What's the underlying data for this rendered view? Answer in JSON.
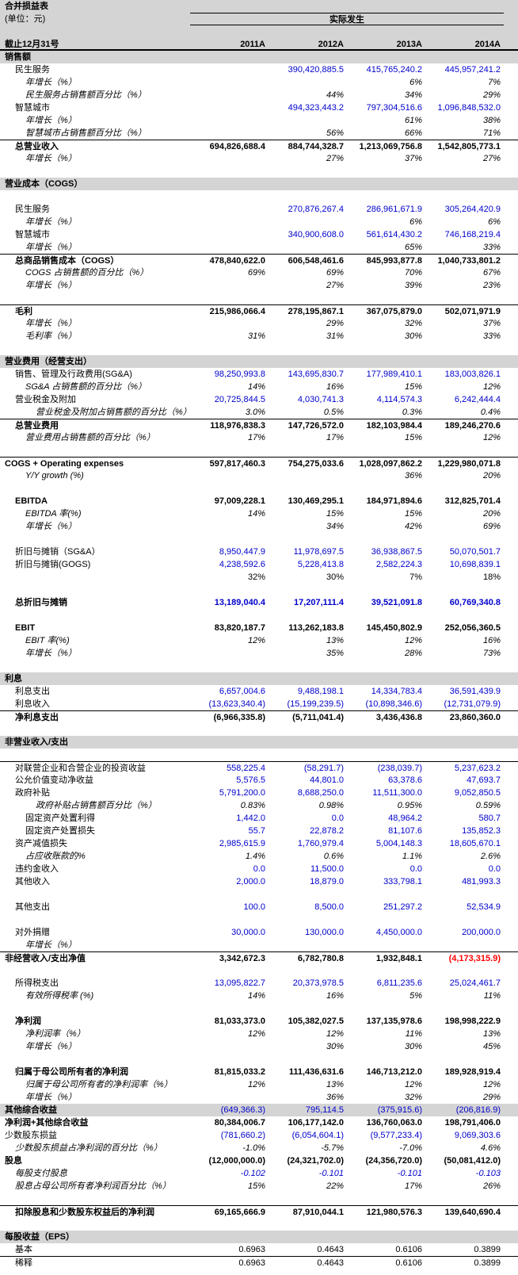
{
  "header": {
    "title": "合并损益表",
    "unit": "(单位：元)",
    "group_label": "实际发生",
    "date_label": "截止12月31号",
    "columns": [
      "2011A",
      "2012A",
      "2013A",
      "2014A"
    ]
  },
  "colors": {
    "input_value_blue": "#0000cc",
    "negative_red": "#ff0000",
    "header_gray": "#d4d4d4"
  },
  "rows": [
    {
      "label": "销售额",
      "indent": 0,
      "ls": "b",
      "bg": true,
      "values": [
        "",
        "",
        "",
        ""
      ]
    },
    {
      "label": "民生服务",
      "indent": 1,
      "vs": "blue",
      "values": [
        "",
        "390,420,885.5",
        "415,765,240.2",
        "445,957,241.2"
      ]
    },
    {
      "label": "年增长（%）",
      "indent": 2,
      "ls": "i",
      "vs": "it",
      "values": [
        "",
        "",
        "6%",
        "7%"
      ]
    },
    {
      "label": "民生服务占销售额百分比（%）",
      "indent": 2,
      "ls": "i",
      "vs": "it",
      "values": [
        "",
        "44%",
        "34%",
        "29%"
      ]
    },
    {
      "label": "智慧城市",
      "indent": 1,
      "vs": "blue",
      "values": [
        "",
        "494,323,443.2",
        "797,304,516.6",
        "1,096,848,532.0"
      ]
    },
    {
      "label": "年增长（%）",
      "indent": 2,
      "ls": "i",
      "vs": "it",
      "values": [
        "",
        "",
        "61%",
        "38%"
      ]
    },
    {
      "label": "智慧城市占销售额百分比（%）",
      "indent": 2,
      "ls": "i",
      "vs": "it",
      "values": [
        "",
        "56%",
        "66%",
        "71%"
      ]
    },
    {
      "label": "总营业收入",
      "indent": 1,
      "ls": "b",
      "vs": "bb",
      "bt": true,
      "values": [
        "694,826,688.4",
        "884,744,328.7",
        "1,213,069,756.8",
        "1,542,805,773.1"
      ]
    },
    {
      "label": "年增长（%）",
      "indent": 2,
      "ls": "i",
      "vs": "it",
      "values": [
        "",
        "27%",
        "37%",
        "27%"
      ]
    },
    {
      "label": "",
      "values": [
        "",
        "",
        "",
        ""
      ]
    },
    {
      "label": "营业成本（COGS）",
      "indent": 0,
      "ls": "b",
      "bg": true,
      "values": [
        "",
        "",
        "",
        ""
      ]
    },
    {
      "label": "",
      "values": [
        "",
        "",
        "",
        ""
      ]
    },
    {
      "label": "民生服务",
      "indent": 1,
      "vs": "blue",
      "values": [
        "",
        "270,876,267.4",
        "286,961,671.9",
        "305,264,420.9"
      ]
    },
    {
      "label": "年增长（%）",
      "indent": 2,
      "ls": "i",
      "vs": "it",
      "values": [
        "",
        "",
        "6%",
        "6%"
      ]
    },
    {
      "label": "智慧城市",
      "indent": 1,
      "vs": "blue",
      "values": [
        "",
        "340,900,608.0",
        "561,614,430.2",
        "746,168,219.4"
      ]
    },
    {
      "label": "年增长（%）",
      "indent": 2,
      "ls": "i",
      "vs": "it",
      "values": [
        "",
        "",
        "65%",
        "33%"
      ]
    },
    {
      "label": "总商品销售成本（COGS）",
      "indent": 1,
      "ls": "b",
      "vs": "bb",
      "bt": true,
      "values": [
        "478,840,622.0",
        "606,548,461.6",
        "845,993,877.8",
        "1,040,733,801.2"
      ]
    },
    {
      "label": "COGS 占销售额的百分比（%）",
      "indent": 2,
      "ls": "i",
      "vs": "it",
      "values": [
        "69%",
        "69%",
        "70%",
        "67%"
      ]
    },
    {
      "label": "年增长（%）",
      "indent": 2,
      "ls": "i",
      "vs": "it",
      "values": [
        "",
        "27%",
        "39%",
        "23%"
      ]
    },
    {
      "label": "",
      "values": [
        "",
        "",
        "",
        ""
      ]
    },
    {
      "label": "毛利",
      "indent": 1,
      "ls": "b",
      "vs": "bb",
      "bt": true,
      "values": [
        "215,986,066.4",
        "278,195,867.1",
        "367,075,879.0",
        "502,071,971.9"
      ]
    },
    {
      "label": "年增长（%）",
      "indent": 2,
      "ls": "i",
      "vs": "it",
      "values": [
        "",
        "29%",
        "32%",
        "37%"
      ]
    },
    {
      "label": "毛利率（%）",
      "indent": 2,
      "ls": "i",
      "vs": "it",
      "values": [
        "31%",
        "31%",
        "30%",
        "33%"
      ]
    },
    {
      "label": "",
      "values": [
        "",
        "",
        "",
        ""
      ]
    },
    {
      "label": "营业费用（经营支出）",
      "indent": 0,
      "ls": "b",
      "bg": true,
      "values": [
        "",
        "",
        "",
        ""
      ]
    },
    {
      "label": "销售、管理及行政费用(SG&A)",
      "indent": 1,
      "vs": "blue",
      "values": [
        "98,250,993.8",
        "143,695,830.7",
        "177,989,410.1",
        "183,003,826.1"
      ]
    },
    {
      "label": "SG&A 占销售额的百分比（%）",
      "indent": 2,
      "ls": "i",
      "vs": "it",
      "values": [
        "14%",
        "16%",
        "15%",
        "12%"
      ]
    },
    {
      "label": "营业税金及附加",
      "indent": 1,
      "vs": "blue",
      "values": [
        "20,725,844.5",
        "4,030,741.3",
        "4,114,574.3",
        "6,242,444.4"
      ]
    },
    {
      "label": "营业税金及附加占销售额的百分比（%）",
      "indent": 3,
      "ls": "i",
      "vs": "it",
      "values": [
        "3.0%",
        "0.5%",
        "0.3%",
        "0.4%"
      ]
    },
    {
      "label": "总营业费用",
      "indent": 1,
      "ls": "b",
      "vs": "bb",
      "bt": true,
      "values": [
        "118,976,838.3",
        "147,726,572.0",
        "182,103,984.4",
        "189,246,270.6"
      ]
    },
    {
      "label": "营业费用占销售额的百分比（%）",
      "indent": 2,
      "ls": "i",
      "vs": "it",
      "values": [
        "17%",
        "17%",
        "15%",
        "12%"
      ]
    },
    {
      "label": "",
      "values": [
        "",
        "",
        "",
        ""
      ]
    },
    {
      "label": "COGS + Operating expenses",
      "indent": 0,
      "ls": "b",
      "vs": "bb",
      "bt": true,
      "values": [
        "597,817,460.3",
        "754,275,033.6",
        "1,028,097,862.2",
        "1,229,980,071.8"
      ]
    },
    {
      "label": "Y/Y growth (%)",
      "indent": 2,
      "ls": "i",
      "vs": "it",
      "values": [
        "",
        "",
        "36%",
        "20%"
      ]
    },
    {
      "label": "",
      "values": [
        "",
        "",
        "",
        ""
      ]
    },
    {
      "label": "EBITDA",
      "indent": 1,
      "ls": "b",
      "vs": "bb",
      "values": [
        "97,009,228.1",
        "130,469,295.1",
        "184,971,894.6",
        "312,825,701.4"
      ]
    },
    {
      "label": "EBITDA 率(%)",
      "indent": 2,
      "ls": "i",
      "vs": "it",
      "values": [
        "14%",
        "15%",
        "15%",
        "20%"
      ]
    },
    {
      "label": "年增长（%）",
      "indent": 2,
      "ls": "i",
      "vs": "it",
      "values": [
        "",
        "34%",
        "42%",
        "69%"
      ]
    },
    {
      "label": "",
      "values": [
        "",
        "",
        "",
        ""
      ]
    },
    {
      "label": "折旧与摊销（SG&A）",
      "indent": 1,
      "vs": "blue",
      "values": [
        "8,950,447.9",
        "11,978,697.5",
        "36,938,867.5",
        "50,070,501.7"
      ]
    },
    {
      "label": "折旧与摊销(GOGS)",
      "indent": 1,
      "vs": "blue",
      "values": [
        "4,238,592.6",
        "5,228,413.8",
        "2,582,224.3",
        "10,698,839.1"
      ]
    },
    {
      "label": "",
      "indent": 1,
      "vs": "blk",
      "values": [
        "32%",
        "30%",
        "7%",
        "18%"
      ]
    },
    {
      "label": "",
      "values": [
        "",
        "",
        "",
        ""
      ]
    },
    {
      "label": "总折旧与摊销",
      "indent": 1,
      "ls": "b",
      "vs": "bblue",
      "values": [
        "13,189,040.4",
        "17,207,111.4",
        "39,521,091.8",
        "60,769,340.8"
      ]
    },
    {
      "label": "",
      "values": [
        "",
        "",
        "",
        ""
      ]
    },
    {
      "label": "EBIT",
      "indent": 1,
      "ls": "b",
      "vs": "bb",
      "values": [
        "83,820,187.7",
        "113,262,183.8",
        "145,450,802.9",
        "252,056,360.5"
      ]
    },
    {
      "label": "EBIT 率(%)",
      "indent": 2,
      "ls": "i",
      "vs": "it",
      "values": [
        "12%",
        "13%",
        "12%",
        "16%"
      ]
    },
    {
      "label": "年增长（%）",
      "indent": 2,
      "ls": "i",
      "vs": "it",
      "values": [
        "",
        "35%",
        "28%",
        "73%"
      ]
    },
    {
      "label": "",
      "values": [
        "",
        "",
        "",
        ""
      ]
    },
    {
      "label": "利息",
      "indent": 0,
      "ls": "b",
      "bg": true,
      "values": [
        "",
        "",
        "",
        ""
      ]
    },
    {
      "label": "利息支出",
      "indent": 1,
      "vs": "blue",
      "values": [
        "6,657,004.6",
        "9,488,198.1",
        "14,334,783.4",
        "36,591,439.9"
      ]
    },
    {
      "label": "利息收入",
      "indent": 1,
      "vs": "blue",
      "values": [
        "(13,623,340.4)",
        "(15,199,239.5)",
        "(10,898,346.6)",
        "(12,731,079.9)"
      ]
    },
    {
      "label": "净利息支出",
      "indent": 1,
      "ls": "b",
      "vs": "bb",
      "bt": true,
      "values": [
        "(6,966,335.8)",
        "(5,711,041.4)",
        "3,436,436.8",
        "23,860,360.0"
      ]
    },
    {
      "label": "",
      "values": [
        "",
        "",
        "",
        ""
      ]
    },
    {
      "label": "非营业收入/支出",
      "indent": 0,
      "ls": "b",
      "bg": true,
      "values": [
        "",
        "",
        "",
        ""
      ]
    },
    {
      "label": "",
      "values": [
        "",
        "",
        "",
        ""
      ]
    },
    {
      "label": "对联营企业和合营企业的投资收益",
      "indent": 1,
      "vs": "blue",
      "bt": true,
      "values": [
        "558,225.4",
        "(58,291.7)",
        "(238,039.7)",
        "5,237,623.2"
      ]
    },
    {
      "label": "公允价值变动净收益",
      "indent": 1,
      "vs": "blue",
      "values": [
        "5,576.5",
        "44,801.0",
        "63,378.6",
        "47,693.7"
      ]
    },
    {
      "label": "政府补贴",
      "indent": 1,
      "vs": "blue",
      "values": [
        "5,791,200.0",
        "8,688,250.0",
        "11,511,300.0",
        "9,052,850.5"
      ]
    },
    {
      "label": "政府补贴占销售额百分比（%）",
      "indent": 3,
      "ls": "i",
      "vs": "it",
      "values": [
        "0.83%",
        "0.98%",
        "0.95%",
        "0.59%"
      ]
    },
    {
      "label": "固定资产处置利得",
      "indent": 2,
      "vs": "blue",
      "values": [
        "1,442.0",
        "0.0",
        "48,964.2",
        "580.7"
      ]
    },
    {
      "label": "固定资产处置损失",
      "indent": 2,
      "vs": "blue",
      "values": [
        "55.7",
        "22,878.2",
        "81,107.6",
        "135,852.3"
      ]
    },
    {
      "label": "资产减值损失",
      "indent": 1,
      "vs": "blue",
      "values": [
        "2,985,615.9",
        "1,760,979.4",
        "5,004,148.3",
        "18,605,670.1"
      ]
    },
    {
      "label": "占应收账款的%",
      "indent": 2,
      "ls": "i",
      "vs": "it",
      "values": [
        "1.4%",
        "0.6%",
        "1.1%",
        "2.6%"
      ]
    },
    {
      "label": "违约金收入",
      "indent": 1,
      "vs": "blue",
      "values": [
        "0.0",
        "11,500.0",
        "0.0",
        "0.0"
      ]
    },
    {
      "label": "其他收入",
      "indent": 1,
      "vs": "blue",
      "values": [
        "2,000.0",
        "18,879.0",
        "333,798.1",
        "481,993.3"
      ]
    },
    {
      "label": "",
      "values": [
        "",
        "",
        "",
        ""
      ]
    },
    {
      "label": "其他支出",
      "indent": 1,
      "vs": "blue",
      "values": [
        "100.0",
        "8,500.0",
        "251,297.2",
        "52,534.9"
      ]
    },
    {
      "label": "",
      "values": [
        "",
        "",
        "",
        ""
      ]
    },
    {
      "label": "对外捐赠",
      "indent": 1,
      "vs": "blue",
      "values": [
        "30,000.0",
        "130,000.0",
        "4,450,000.0",
        "200,000.0"
      ]
    },
    {
      "label": "年增长（%）",
      "indent": 2,
      "ls": "i",
      "vs": "it",
      "values": [
        "",
        "",
        "",
        ""
      ]
    },
    {
      "label": "非经营收入/支出净值",
      "indent": 0,
      "ls": "b",
      "vs": "bb",
      "bt": true,
      "red": [
        3
      ],
      "values": [
        "3,342,672.3",
        "6,782,780.8",
        "1,932,848.1",
        "(4,173,315.9)"
      ]
    },
    {
      "label": "",
      "values": [
        "",
        "",
        "",
        ""
      ]
    },
    {
      "label": "所得税支出",
      "indent": 1,
      "vs": "blue",
      "values": [
        "13,095,822.7",
        "20,373,978.5",
        "6,811,235.6",
        "25,024,461.7"
      ]
    },
    {
      "label": "有效所得税率 (%)",
      "indent": 2,
      "ls": "i",
      "vs": "it",
      "values": [
        "14%",
        "16%",
        "5%",
        "11%"
      ]
    },
    {
      "label": "",
      "values": [
        "",
        "",
        "",
        ""
      ]
    },
    {
      "label": "净利润",
      "indent": 1,
      "ls": "b",
      "vs": "bb",
      "values": [
        "81,033,373.0",
        "105,382,027.5",
        "137,135,978.6",
        "198,998,222.9"
      ]
    },
    {
      "label": "净利润率（%）",
      "indent": 2,
      "ls": "i",
      "vs": "it",
      "values": [
        "12%",
        "12%",
        "11%",
        "13%"
      ]
    },
    {
      "label": "年增长（%）",
      "indent": 2,
      "ls": "i",
      "vs": "it",
      "values": [
        "",
        "30%",
        "30%",
        "45%"
      ]
    },
    {
      "label": "",
      "values": [
        "",
        "",
        "",
        ""
      ]
    },
    {
      "label": "归属于母公司所有者的净利润",
      "indent": 1,
      "ls": "b",
      "vs": "bb",
      "values": [
        "81,815,033.2",
        "111,436,631.6",
        "146,713,212.0",
        "189,928,919.4"
      ]
    },
    {
      "label": "归属于母公司所有者的净利润率（%）",
      "indent": 2,
      "ls": "i",
      "vs": "it",
      "values": [
        "12%",
        "13%",
        "12%",
        "12%"
      ]
    },
    {
      "label": "年增长（%）",
      "indent": 2,
      "ls": "i",
      "vs": "it",
      "values": [
        "",
        "36%",
        "32%",
        "29%"
      ]
    },
    {
      "label": "其他综合收益",
      "indent": 0,
      "ls": "b",
      "vs": "blue",
      "bg": true,
      "values": [
        "(649,366.3)",
        "795,114.5",
        "(375,915.6)",
        "(206,816.9)"
      ]
    },
    {
      "label": "净利润+其他综合收益",
      "indent": 0,
      "ls": "b",
      "vs": "bb",
      "values": [
        "80,384,006.7",
        "106,177,142.0",
        "136,760,063.0",
        "198,791,406.0"
      ]
    },
    {
      "label": "少数股东损益",
      "indent": 0,
      "vs": "blue",
      "values": [
        "(781,660.2)",
        "(6,054,604.1)",
        "(9,577,233.4)",
        "9,069,303.6"
      ]
    },
    {
      "label": "少数股东损益占净利润的百分比（%）",
      "indent": 1,
      "ls": "i",
      "vs": "it",
      "values": [
        "-1.0%",
        "-5.7%",
        "-7.0%",
        "4.6%"
      ]
    },
    {
      "label": "股息",
      "indent": 0,
      "ls": "b",
      "vs": "bb",
      "values": [
        "(12,000,000.0)",
        "(24,321,702.0)",
        "(24,356,720.0)",
        "(50,081,412.0)"
      ]
    },
    {
      "label": "每股支付股息",
      "indent": 1,
      "ls": "i",
      "vs": "iblue",
      "values": [
        "-0.102",
        "-0.101",
        "-0.101",
        "-0.103"
      ]
    },
    {
      "label": "股息占母公司所有者净利润百分比（%）",
      "indent": 1,
      "ls": "i",
      "vs": "it",
      "values": [
        "15%",
        "22%",
        "17%",
        "26%"
      ]
    },
    {
      "label": "",
      "values": [
        "",
        "",
        "",
        ""
      ]
    },
    {
      "label": "扣除股息和少数股东权益后的净利润",
      "indent": 1,
      "ls": "b",
      "vs": "bb",
      "bt": true,
      "values": [
        "69,165,666.9",
        "87,910,044.1",
        "121,980,576.3",
        "139,640,690.4"
      ]
    },
    {
      "label": "",
      "values": [
        "",
        "",
        "",
        ""
      ]
    },
    {
      "label": "每股收益（EPS）",
      "indent": 0,
      "ls": "b",
      "bg": true,
      "values": [
        "",
        "",
        "",
        ""
      ]
    },
    {
      "label": "基本",
      "indent": 1,
      "vs": "blk",
      "values": [
        "0.6963",
        "0.4643",
        "0.6106",
        "0.3899"
      ]
    },
    {
      "label": "稀释",
      "indent": 1,
      "vs": "blk",
      "bt": true,
      "values": [
        "0.6963",
        "0.4643",
        "0.6106",
        "0.3899"
      ]
    }
  ]
}
